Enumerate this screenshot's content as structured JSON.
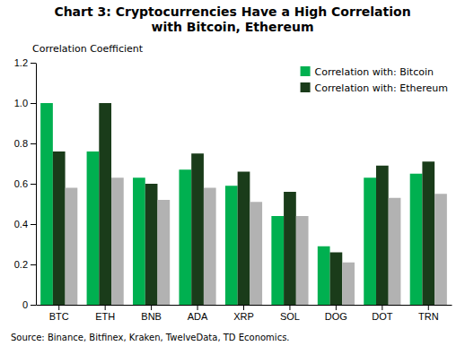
{
  "chart_data": {
    "type": "bar",
    "title": "Chart 3: Cryptocurrencies Have a High Correlation\nwith Bitcoin, Ethereum",
    "ylabel": "Correlation Coefficient",
    "source": "Source: Binance, Bitfinex, Kraken, TwelveData, TD Economics.",
    "categories": [
      "BTC",
      "ETH",
      "BNB",
      "ADA",
      "XRP",
      "SOL",
      "DOG",
      "DOT",
      "TRN"
    ],
    "series": [
      {
        "name": "Correlation with: Bitcoin",
        "color": "#00b050",
        "values": [
          1.0,
          0.76,
          0.63,
          0.67,
          0.59,
          0.44,
          0.29,
          0.63,
          0.65
        ]
      },
      {
        "name": "Correlation with: Ethereum",
        "color": "#1a3c1a",
        "values": [
          0.76,
          1.0,
          0.6,
          0.75,
          0.66,
          0.56,
          0.26,
          0.69,
          0.71
        ]
      },
      {
        "color": "#b2b2b2",
        "values": [
          0.58,
          0.63,
          0.52,
          0.58,
          0.51,
          0.44,
          0.21,
          0.53,
          0.55
        ]
      }
    ],
    "ylim": [
      0,
      1.2
    ],
    "yticks": [
      0,
      0.2,
      0.4,
      0.6,
      0.8,
      {
        "value": 1.0,
        "label": "1.0"
      },
      1.2
    ],
    "grid": false,
    "legend": "upper right"
  }
}
